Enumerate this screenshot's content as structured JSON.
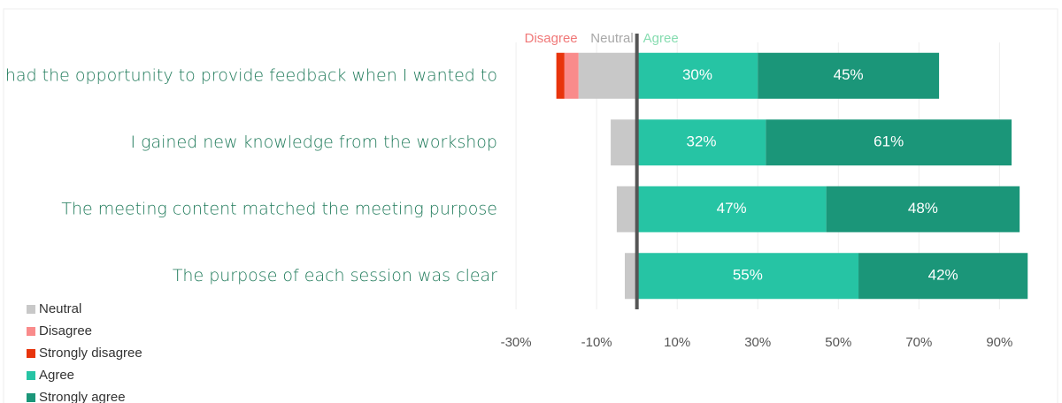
{
  "chart_data": {
    "type": "diverging_bar",
    "annotations": [
      "Disagree",
      "Neutral",
      "Agree"
    ],
    "categories": [
      "I had the opportunity to provide feedback when I wanted to",
      "I gained new knowledge from the workshop",
      "The meeting content matched the meeting purpose",
      "The purpose of each session was clear"
    ],
    "series": [
      {
        "name": "Neutral",
        "color": "#c8c8c8",
        "values": [
          -14.5,
          -6.5,
          -5,
          -3
        ]
      },
      {
        "name": "Disagree",
        "color": "#f98b8b",
        "values": [
          -3.5,
          0,
          0,
          0
        ]
      },
      {
        "name": "Strongly disagree",
        "color": "#e8340c",
        "values": [
          -2,
          0,
          0,
          0
        ]
      },
      {
        "name": "Agree",
        "color": "#26c4a4",
        "values": [
          30,
          32,
          47,
          55
        ],
        "value_labels": [
          "30%",
          "32%",
          "47%",
          "55%"
        ]
      },
      {
        "name": "Strongly agree",
        "color": "#1b9679",
        "values": [
          45,
          61,
          48,
          42
        ],
        "value_labels": [
          "45%",
          "61%",
          "48%",
          "42%"
        ]
      }
    ],
    "xlim": [
      -32,
      102
    ],
    "xticks": [
      {
        "value": -30,
        "label": "-30%"
      },
      {
        "value": -10,
        "label": "-10%"
      },
      {
        "value": 10,
        "label": "10%"
      },
      {
        "value": 30,
        "label": "30%"
      },
      {
        "value": 50,
        "label": "50%"
      },
      {
        "value": 70,
        "label": "70%"
      },
      {
        "value": 90,
        "label": "90%"
      }
    ],
    "grid": true
  }
}
